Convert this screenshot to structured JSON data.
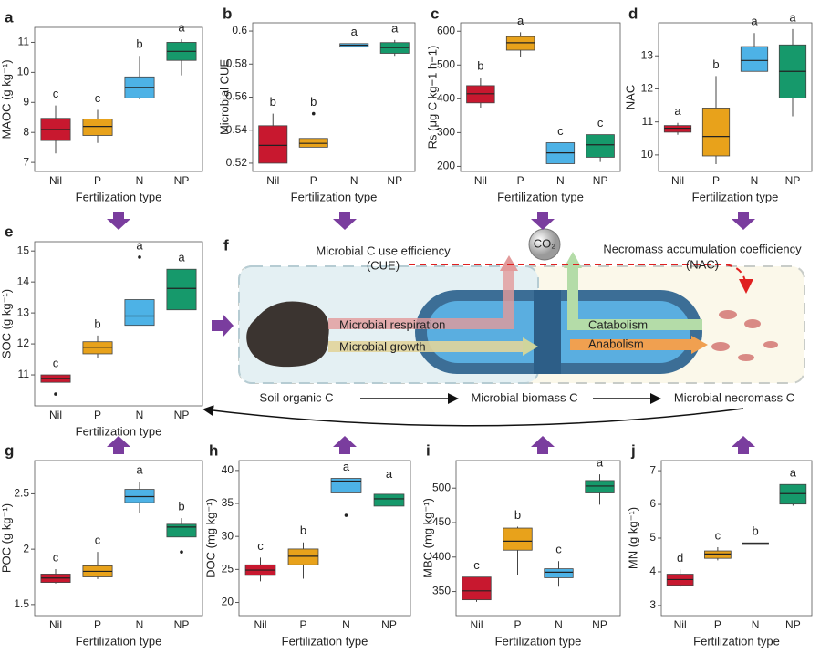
{
  "chart_data": [
    {
      "type": "box",
      "panel": "a",
      "ylabel": "MAOC (g kg⁻¹)",
      "xlabel": "Fertilization type",
      "categories": [
        "Nil",
        "P",
        "N",
        "NP"
      ],
      "colors": [
        "#c8182f",
        "#e8a21b",
        "#4db2e6",
        "#16996b"
      ],
      "ylim": [
        6.7,
        11.5
      ],
      "yticks": [
        7,
        8,
        9,
        10,
        11
      ],
      "boxes": [
        {
          "min": 7.3,
          "q1": 7.73,
          "median": 8.1,
          "q3": 8.47,
          "max": 8.9
        },
        {
          "min": 7.65,
          "q1": 7.9,
          "median": 8.2,
          "q3": 8.45,
          "max": 8.75
        },
        {
          "min": 9.1,
          "q1": 9.15,
          "median": 9.5,
          "q3": 9.85,
          "max": 10.55
        },
        {
          "min": 9.9,
          "q1": 10.4,
          "median": 10.7,
          "q3": 11.0,
          "max": 11.1
        }
      ],
      "letters": [
        "c",
        "c",
        "b",
        "a"
      ]
    },
    {
      "type": "box",
      "panel": "b",
      "ylabel": "Microbial CUE",
      "xlabel": "Fertilization type",
      "categories": [
        "Nil",
        "P",
        "N",
        "NP"
      ],
      "colors": [
        "#c8182f",
        "#e8a21b",
        "#4db2e6",
        "#16996b"
      ],
      "ylim": [
        0.515,
        0.605
      ],
      "yticks": [
        0.52,
        0.54,
        0.56,
        0.58,
        0.6
      ],
      "boxes": [
        {
          "min": 0.52,
          "q1": 0.52,
          "median": 0.5308,
          "q3": 0.5427,
          "max": 0.55
        },
        {
          "min": 0.5297,
          "q1": 0.5297,
          "median": 0.532,
          "q3": 0.535,
          "max": 0.535,
          "outliers": [
            0.55
          ]
        },
        {
          "min": 0.5903,
          "q1": 0.5903,
          "median": 0.5914,
          "q3": 0.5924,
          "max": 0.5926
        },
        {
          "min": 0.585,
          "q1": 0.5865,
          "median": 0.59,
          "q3": 0.593,
          "max": 0.5946
        }
      ],
      "letters": [
        "b",
        "b",
        "a",
        "a"
      ]
    },
    {
      "type": "box",
      "panel": "c",
      "ylabel": "Rs (μg C kg−1 h−1)",
      "xlabel": "Fertilization type",
      "categories": [
        "Nil",
        "P",
        "N",
        "NP"
      ],
      "colors": [
        "#c8182f",
        "#e8a21b",
        "#4db2e6",
        "#16996b"
      ],
      "ylim": [
        185,
        625
      ],
      "yticks": [
        200,
        300,
        400,
        500,
        600
      ],
      "boxes": [
        {
          "min": 374,
          "q1": 388,
          "median": 415,
          "q3": 439,
          "max": 463
        },
        {
          "min": 525,
          "q1": 544,
          "median": 566,
          "q3": 584,
          "max": 597
        },
        {
          "min": 208,
          "q1": 208,
          "median": 240,
          "q3": 270,
          "max": 270
        },
        {
          "min": 213,
          "q1": 227,
          "median": 264,
          "q3": 294,
          "max": 294
        }
      ],
      "letters": [
        "b",
        "a",
        "c",
        "c"
      ]
    },
    {
      "type": "box",
      "panel": "d",
      "ylabel": "NAC",
      "xlabel": "Fertilization type",
      "categories": [
        "Nil",
        "P",
        "N",
        "NP"
      ],
      "colors": [
        "#c8182f",
        "#e8a21b",
        "#4db2e6",
        "#16996b"
      ],
      "ylim": [
        9.5,
        14
      ],
      "yticks": [
        10,
        11,
        12,
        13
      ],
      "boxes": [
        {
          "min": 10.61,
          "q1": 10.69,
          "median": 10.81,
          "q3": 10.89,
          "max": 10.97
        },
        {
          "min": 9.72,
          "q1": 9.97,
          "median": 10.56,
          "q3": 11.42,
          "max": 12.39
        },
        {
          "min": 12.53,
          "q1": 12.53,
          "median": 12.86,
          "q3": 13.28,
          "max": 13.69
        },
        {
          "min": 11.17,
          "q1": 11.72,
          "median": 12.53,
          "q3": 13.33,
          "max": 13.81
        }
      ],
      "letters": [
        "a",
        "b",
        "a",
        "a"
      ]
    },
    {
      "type": "box",
      "panel": "e",
      "ylabel": "SOC (g kg⁻¹)",
      "xlabel": "Fertilization type",
      "categories": [
        "Nil",
        "P",
        "N",
        "NP"
      ],
      "colors": [
        "#c8182f",
        "#e8a21b",
        "#4db2e6",
        "#16996b"
      ],
      "ylim": [
        10,
        15.3
      ],
      "yticks": [
        11,
        12,
        13,
        14,
        15
      ],
      "boxes": [
        {
          "min": 10.76,
          "q1": 10.76,
          "median": 10.88,
          "q3": 11.0,
          "max": 11.0,
          "outliers": [
            10.38
          ]
        },
        {
          "min": 11.56,
          "q1": 11.68,
          "median": 11.89,
          "q3": 12.07,
          "max": 12.27
        },
        {
          "min": 12.6,
          "q1": 12.6,
          "median": 12.9,
          "q3": 13.43,
          "max": 13.43,
          "outliers": [
            14.8
          ]
        },
        {
          "min": 13.1,
          "q1": 13.1,
          "median": 13.79,
          "q3": 14.41,
          "max": 14.41
        }
      ],
      "letters": [
        "c",
        "b",
        "a",
        "a"
      ]
    },
    {
      "type": "box",
      "panel": "g",
      "ylabel": "POC (g kg⁻¹)",
      "xlabel": "Fertilization type",
      "categories": [
        "Nil",
        "P",
        "N",
        "NP"
      ],
      "colors": [
        "#c8182f",
        "#e8a21b",
        "#4db2e6",
        "#16996b"
      ],
      "ylim": [
        1.4,
        2.8
      ],
      "yticks": [
        1.5,
        2.0,
        2.5
      ],
      "boxes": [
        {
          "min": 1.69,
          "q1": 1.7,
          "median": 1.74,
          "q3": 1.775,
          "max": 1.82
        },
        {
          "min": 1.73,
          "q1": 1.75,
          "median": 1.8,
          "q3": 1.85,
          "max": 1.975
        },
        {
          "min": 2.33,
          "q1": 2.42,
          "median": 2.475,
          "q3": 2.54,
          "max": 2.61
        },
        {
          "min": 2.11,
          "q1": 2.11,
          "median": 2.2,
          "q3": 2.225,
          "max": 2.28,
          "outliers": [
            1.975
          ]
        }
      ],
      "letters": [
        "c",
        "c",
        "a",
        "b"
      ]
    },
    {
      "type": "box",
      "panel": "h",
      "ylabel": "DOC (mg kg⁻¹)",
      "xlabel": "Fertilization type",
      "categories": [
        "Nil",
        "P",
        "N",
        "NP"
      ],
      "colors": [
        "#c8182f",
        "#e8a21b",
        "#4db2e6",
        "#16996b"
      ],
      "ylim": [
        18,
        41.5
      ],
      "yticks": [
        20,
        25,
        30,
        35,
        40
      ],
      "boxes": [
        {
          "min": 23.2,
          "q1": 24.1,
          "median": 24.9,
          "q3": 25.7,
          "max": 26.8
        },
        {
          "min": 23.6,
          "q1": 25.7,
          "median": 27.0,
          "q3": 28.1,
          "max": 29.1
        },
        {
          "min": 36.6,
          "q1": 36.6,
          "median": 38.4,
          "q3": 38.8,
          "max": 38.8,
          "outliers": [
            33.2
          ]
        },
        {
          "min": 33.4,
          "q1": 34.6,
          "median": 35.7,
          "q3": 36.4,
          "max": 37.7
        }
      ],
      "letters": [
        "c",
        "b",
        "a",
        "a"
      ]
    },
    {
      "type": "box",
      "panel": "i",
      "ylabel": "MBC (mg kg⁻¹)",
      "xlabel": "Fertilization type",
      "categories": [
        "Nil",
        "P",
        "N",
        "NP"
      ],
      "colors": [
        "#c8182f",
        "#e8a21b",
        "#4db2e6",
        "#16996b"
      ],
      "ylim": [
        315,
        540
      ],
      "yticks": [
        350,
        400,
        450,
        500
      ],
      "boxes": [
        {
          "min": 335,
          "q1": 338,
          "median": 351,
          "q3": 371,
          "max": 371
        },
        {
          "min": 374,
          "q1": 410,
          "median": 423,
          "q3": 442,
          "max": 444
        },
        {
          "min": 357,
          "q1": 370,
          "median": 378,
          "q3": 383,
          "max": 394
        },
        {
          "min": 476,
          "q1": 493,
          "median": 503,
          "q3": 511,
          "max": 520
        }
      ],
      "letters": [
        "c",
        "b",
        "c",
        "a"
      ]
    },
    {
      "type": "box",
      "panel": "j",
      "ylabel": "MN (g kg⁻¹)",
      "xlabel": "Fertilization type",
      "categories": [
        "Nil",
        "P",
        "N",
        "NP"
      ],
      "colors": [
        "#c8182f",
        "#e8a21b",
        "#4db2e6",
        "#16996b"
      ],
      "ylim": [
        2.7,
        7.3
      ],
      "yticks": [
        3,
        4,
        5,
        6,
        7
      ],
      "boxes": [
        {
          "min": 3.55,
          "q1": 3.6,
          "median": 3.77,
          "q3": 3.93,
          "max": 4.07
        },
        {
          "min": 4.34,
          "q1": 4.4,
          "median": 4.53,
          "q3": 4.62,
          "max": 4.73
        },
        {
          "min": 4.81,
          "q1": 4.81,
          "median": 4.84,
          "q3": 4.86,
          "max": 4.86
        },
        {
          "min": 5.96,
          "q1": 6.01,
          "median": 6.32,
          "q3": 6.59,
          "max": 6.59
        }
      ],
      "letters": [
        "d",
        "c",
        "b",
        "a"
      ]
    }
  ],
  "diagram": {
    "panel": "f",
    "cue": "Microbial C use efficiency",
    "cue_abbr": "(CUE)",
    "nac": "Necromass accumulation coefficiency",
    "nac_abbr": "(NAC)",
    "co2": "CO₂",
    "respiration": "Microbial respiration",
    "growth": "Microbial growth",
    "catabolism": "Catabolism",
    "anabolism": "Anabolism",
    "soc": "Soil organic C",
    "mbc": "Microbial biomass C",
    "mnc": "Microbial necromass C"
  }
}
